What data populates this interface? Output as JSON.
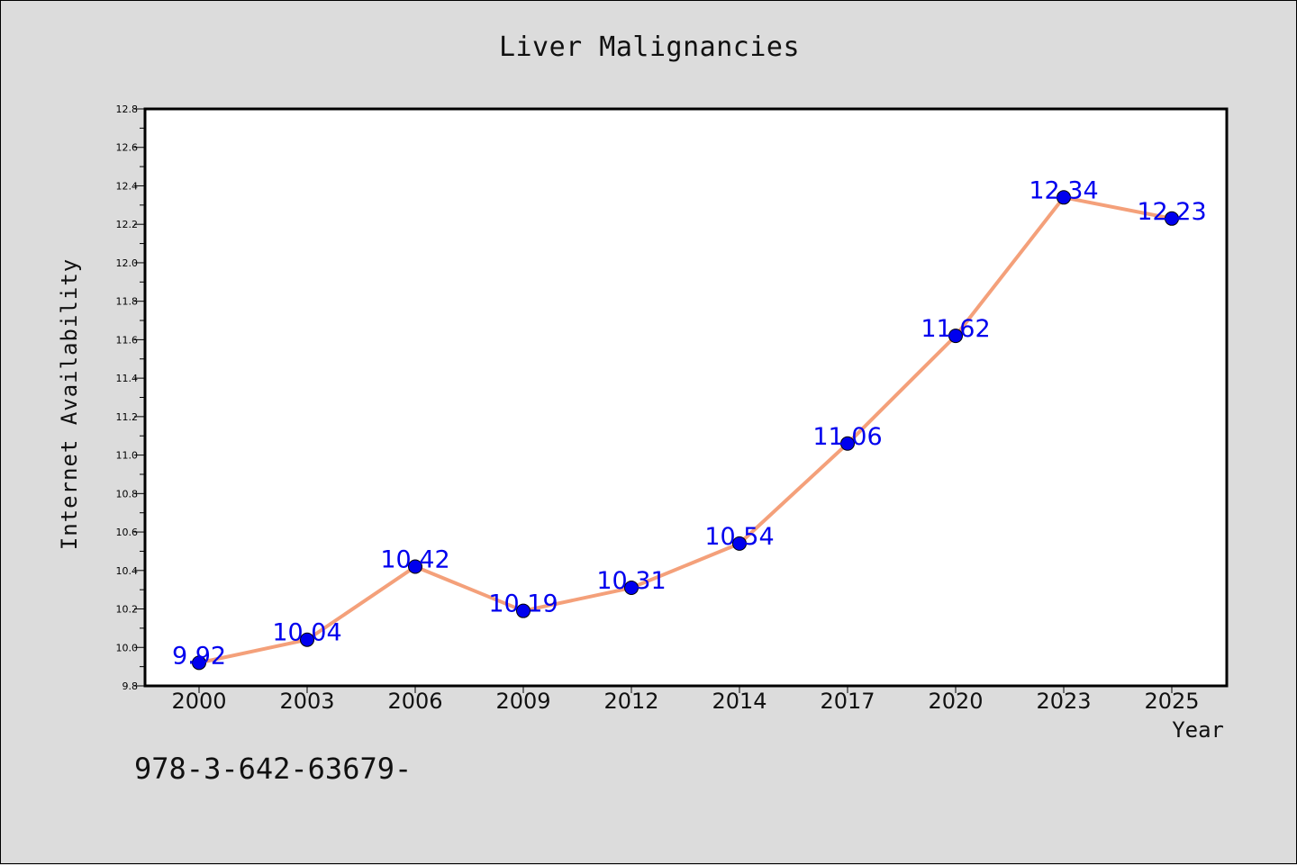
{
  "chart_data": {
    "type": "line",
    "title": "Liver Malignancies",
    "xlabel": "Year",
    "ylabel": "Internet Availability",
    "categories": [
      "2000",
      "2003",
      "2006",
      "2009",
      "2012",
      "2014",
      "2017",
      "2020",
      "2023",
      "2025"
    ],
    "values": [
      9.92,
      10.04,
      10.42,
      10.19,
      10.31,
      10.54,
      11.06,
      11.62,
      12.34,
      12.23
    ],
    "data_labels": [
      "9.92",
      "10.04",
      "10.42",
      "10.19",
      "10.31",
      "10.54",
      "11.06",
      "11.62",
      "12.34",
      "12.23"
    ],
    "ylim": [
      9.8,
      12.8
    ],
    "y_ticks": [
      "9.8",
      "10.0",
      "10.2",
      "10.4",
      "10.6",
      "10.8",
      "11.0",
      "11.2",
      "11.4",
      "11.6",
      "11.8",
      "12.0",
      "12.2",
      "12.4",
      "12.6",
      "12.8"
    ],
    "grid": false,
    "line_color": "#f4a07a",
    "marker_color": "#0000ee",
    "label_color": "#0000ee"
  },
  "footer": {
    "isbn": "978-3-642-63679-"
  }
}
